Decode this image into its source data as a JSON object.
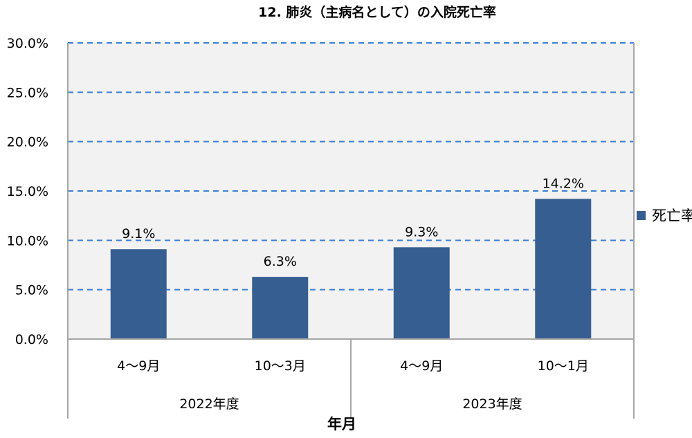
{
  "chart_data": {
    "type": "bar",
    "title": "12. 肺炎（主病名として）の入院死亡率",
    "xlabel": "年月",
    "ylabel": "",
    "ylim": [
      0,
      30
    ],
    "y_ticks": [
      0,
      5,
      10,
      15,
      20,
      25,
      30
    ],
    "y_tick_labels": [
      "0.0%",
      "5.0%",
      "10.0%",
      "15.0%",
      "20.0%",
      "25.0%",
      "30.0%"
    ],
    "categories": [
      "4〜9月",
      "10〜3月",
      "4〜9月",
      "10〜1月"
    ],
    "groups": [
      {
        "label": "2022年度",
        "span": 2
      },
      {
        "label": "2023年度",
        "span": 2
      }
    ],
    "series": [
      {
        "name": "死亡率",
        "values": [
          9.1,
          6.3,
          9.3,
          14.2
        ],
        "data_labels": [
          "9.1%",
          "6.3%",
          "9.3%",
          "14.2%"
        ],
        "color": "#375E91"
      }
    ],
    "grid": true,
    "grid_style": "dashed",
    "grid_color": "#3C7FD4",
    "plot_background": "#F2F2F2",
    "legend_position": "right"
  }
}
